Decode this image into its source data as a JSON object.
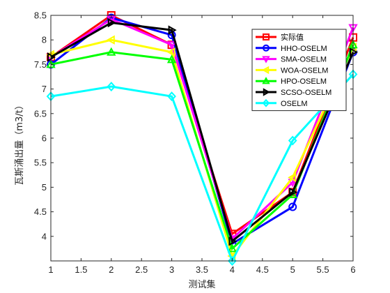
{
  "chart_data": {
    "type": "line",
    "xlabel": "测试集",
    "ylabel": "瓦斯涌出量（m3/t）",
    "xlim": [
      1,
      6
    ],
    "ylim": [
      3.5,
      8.5
    ],
    "xticks": [
      "1",
      "1.5",
      "2",
      "2.5",
      "3",
      "3.5",
      "4",
      "4.5",
      "5",
      "5.5",
      "6"
    ],
    "yticks": [
      "4",
      "4.5",
      "5",
      "5.5",
      "6",
      "6.5",
      "7",
      "7.5",
      "8",
      "8.5"
    ],
    "grid": false,
    "legend_position": "top-right",
    "x": [
      1,
      2,
      3,
      4,
      5,
      6
    ],
    "series": [
      {
        "name": "实际值",
        "color": "#ff0000",
        "marker": "square",
        "values": [
          7.65,
          8.5,
          7.9,
          4.05,
          4.9,
          8.05
        ]
      },
      {
        "name": "HHO-OSELM",
        "color": "#0000ff",
        "marker": "circle",
        "values": [
          7.5,
          8.45,
          8.1,
          3.85,
          4.6,
          7.75
        ]
      },
      {
        "name": "SMA-OSELM",
        "color": "#ff00ff",
        "marker": "triangle-down",
        "values": [
          7.65,
          8.42,
          7.9,
          3.95,
          5.1,
          8.25
        ]
      },
      {
        "name": "WOA-OSELM",
        "color": "#ffff00",
        "marker": "triangle-left",
        "values": [
          7.7,
          8.0,
          7.75,
          3.6,
          5.2,
          7.85
        ]
      },
      {
        "name": "HPO-OSELM",
        "color": "#00ff00",
        "marker": "triangle-up",
        "values": [
          7.5,
          7.75,
          7.6,
          3.75,
          4.85,
          7.9
        ]
      },
      {
        "name": "SCSO-OSELM",
        "color": "#000000",
        "marker": "triangle-right",
        "values": [
          7.65,
          8.35,
          8.2,
          3.9,
          4.9,
          7.75
        ]
      },
      {
        "name": "OSELM",
        "color": "#00ffff",
        "marker": "diamond",
        "values": [
          6.85,
          7.05,
          6.85,
          3.5,
          5.95,
          7.3
        ]
      }
    ]
  }
}
